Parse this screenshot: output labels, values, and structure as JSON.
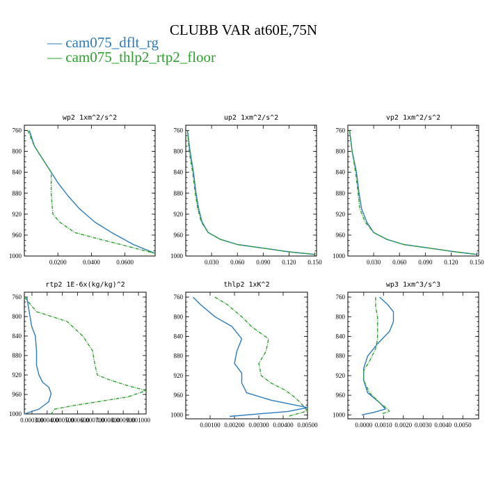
{
  "figure": {
    "title": "CLUBB VAR at60E,75N"
  },
  "legend": [
    {
      "label": "cam075_dflt_rg",
      "color": "#2b7bba"
    },
    {
      "label": "cam075_thlp2_rtp2_floor",
      "color": "#2ca02c"
    }
  ],
  "chart_data": [
    {
      "type": "line",
      "title": "wp2  1xm^2/s^2",
      "ylim": [
        1000,
        750
      ],
      "y_ticks": [
        760,
        800,
        840,
        880,
        920,
        960,
        1000
      ],
      "xlim": [
        0.0,
        0.078
      ],
      "x_ticks": [
        0.02,
        0.04,
        0.06
      ],
      "x_tick_labels": [
        "0.0200",
        "0.0400",
        "0.0600"
      ],
      "series": [
        {
          "name": "cam075_dflt_rg",
          "style": "solid",
          "x": [
            0.003,
            0.006,
            0.01,
            0.015,
            0.02,
            0.026,
            0.033,
            0.042,
            0.052,
            0.065,
            0.078
          ],
          "y": [
            760,
            790,
            810,
            835,
            860,
            885,
            910,
            935,
            955,
            978,
            995
          ]
        },
        {
          "name": "cam075_thlp2_rtp2_floor",
          "style": "dashed",
          "x": [
            0.002,
            0.006,
            0.011,
            0.016,
            0.016,
            0.016,
            0.017,
            0.021,
            0.03,
            0.045,
            0.06,
            0.078
          ],
          "y": [
            760,
            790,
            815,
            840,
            858,
            880,
            920,
            935,
            955,
            968,
            980,
            995
          ]
        }
      ]
    },
    {
      "type": "line",
      "title": "up2  1xm^2/s^2",
      "ylim": [
        1000,
        750
      ],
      "y_ticks": [
        760,
        800,
        840,
        880,
        920,
        960,
        1000
      ],
      "xlim": [
        0.0,
        0.152
      ],
      "x_ticks": [
        0.03,
        0.06,
        0.09,
        0.12,
        0.15
      ],
      "x_tick_labels": [
        "0.030",
        "0.060",
        "0.090",
        "0.120",
        "0.150"
      ],
      "series": [
        {
          "name": "cam075_dflt_rg",
          "style": "solid",
          "x": [
            0.002,
            0.005,
            0.009,
            0.012,
            0.015,
            0.019,
            0.026,
            0.04,
            0.06,
            0.09,
            0.12,
            0.15
          ],
          "y": [
            760,
            800,
            840,
            880,
            910,
            935,
            955,
            968,
            978,
            985,
            992,
            997
          ]
        },
        {
          "name": "cam075_thlp2_rtp2_floor",
          "style": "dashed",
          "x": [
            0.002,
            0.004,
            0.008,
            0.011,
            0.014,
            0.018,
            0.026,
            0.04,
            0.06,
            0.09,
            0.12,
            0.15
          ],
          "y": [
            760,
            800,
            840,
            880,
            910,
            935,
            955,
            968,
            978,
            985,
            992,
            997
          ]
        }
      ]
    },
    {
      "type": "line",
      "title": "vp2  1xm^2/s^2",
      "ylim": [
        1000,
        750
      ],
      "y_ticks": [
        760,
        800,
        840,
        880,
        920,
        960,
        1000
      ],
      "xlim": [
        0.0,
        0.152
      ],
      "x_ticks": [
        0.03,
        0.06,
        0.09,
        0.12,
        0.15
      ],
      "x_tick_labels": [
        "0.030",
        "0.060",
        "0.090",
        "0.120",
        "0.150"
      ],
      "series": [
        {
          "name": "cam075_dflt_rg",
          "style": "solid",
          "x": [
            0.002,
            0.005,
            0.01,
            0.013,
            0.016,
            0.022,
            0.03,
            0.045,
            0.065,
            0.095,
            0.125,
            0.15
          ],
          "y": [
            760,
            800,
            840,
            880,
            910,
            935,
            955,
            968,
            978,
            985,
            992,
            997
          ]
        },
        {
          "name": "cam075_thlp2_rtp2_floor",
          "style": "dashed",
          "x": [
            0.002,
            0.005,
            0.009,
            0.012,
            0.014,
            0.02,
            0.03,
            0.045,
            0.065,
            0.095,
            0.125,
            0.15
          ],
          "y": [
            760,
            800,
            840,
            880,
            910,
            935,
            955,
            968,
            978,
            985,
            992,
            997
          ]
        }
      ]
    },
    {
      "type": "line",
      "title": "rtp2  1E-6x(kg/kg)^2",
      "ylim": [
        1000,
        750
      ],
      "y_ticks": [
        760,
        800,
        840,
        880,
        920,
        960,
        1000
      ],
      "xlim": [
        0.0,
        1.0
      ],
      "x_tick_labels": [
        "0.000300",
        "0.000400",
        "0.000500",
        "0.000600",
        "0.000700",
        "0.000800",
        "0.000900",
        "0.001000"
      ],
      "series": [
        {
          "name": "cam075_dflt_rg",
          "style": "solid",
          "x": [
            0.02,
            0.04,
            0.06,
            0.09,
            0.1,
            0.1,
            0.12,
            0.15,
            0.2,
            0.22,
            0.2,
            0.12,
            0.0
          ],
          "y": [
            760,
            790,
            820,
            840,
            870,
            900,
            920,
            935,
            945,
            958,
            975,
            990,
            1000
          ]
        },
        {
          "name": "cam075_thlp2_rtp2_floor",
          "style": "dashed",
          "x": [
            0.0,
            0.1,
            0.35,
            0.48,
            0.56,
            0.58,
            0.6,
            0.7,
            0.85,
            1.0,
            0.85,
            0.6,
            0.4,
            0.25,
            0.22
          ],
          "y": [
            760,
            790,
            810,
            840,
            870,
            900,
            920,
            930,
            942,
            952,
            965,
            975,
            983,
            990,
            1000
          ]
        }
      ]
    },
    {
      "type": "line",
      "title": "thlp2  1xK^2",
      "ylim": [
        1008,
        750
      ],
      "y_ticks": [
        760,
        800,
        840,
        880,
        920,
        960,
        1000
      ],
      "xlim": [
        0.0,
        0.005
      ],
      "x_ticks": [
        0.001,
        0.002,
        0.003,
        0.004,
        0.005
      ],
      "x_tick_labels": [
        "0.00100",
        "0.00200",
        "0.00300",
        "0.00400",
        "0.00500"
      ],
      "series": [
        {
          "name": "cam075_dflt_rg",
          "style": "solid",
          "x": [
            0.0003,
            0.0006,
            0.0012,
            0.0019,
            0.0023,
            0.0021,
            0.002,
            0.0023,
            0.0023,
            0.0025,
            0.0035,
            0.005,
            0.0042,
            0.0018
          ],
          "y": [
            760,
            775,
            800,
            820,
            845,
            870,
            895,
            915,
            935,
            955,
            970,
            985,
            993,
            1003
          ]
        },
        {
          "name": "cam075_thlp2_rtp2_floor",
          "style": "dashed",
          "x": [
            0.0012,
            0.0017,
            0.0023,
            0.0027,
            0.0034,
            0.0033,
            0.003,
            0.0031,
            0.0035,
            0.0041,
            0.0045,
            0.0048,
            0.005,
            0.0042
          ],
          "y": [
            760,
            775,
            800,
            820,
            845,
            870,
            895,
            920,
            935,
            950,
            965,
            980,
            992,
            1003
          ]
        }
      ]
    },
    {
      "type": "line",
      "title": "wp3  1xm^3/s^3",
      "ylim": [
        1008,
        750
      ],
      "y_ticks": [
        760,
        800,
        840,
        880,
        920,
        960,
        1000
      ],
      "xlim": [
        -0.0008,
        0.0058
      ],
      "x_ticks": [
        0.0,
        0.001,
        0.002,
        0.003,
        0.004,
        0.005
      ],
      "x_tick_labels": [
        "0.0000",
        "0.0010",
        "0.0020",
        "0.0030",
        "0.0040",
        "0.0050"
      ],
      "series": [
        {
          "name": "cam075_dflt_rg",
          "style": "solid",
          "x": [
            0.0008,
            0.0012,
            0.0015,
            0.0015,
            0.0013,
            0.0007,
            0.0002,
            0.0,
            0.0,
            0.0002,
            0.0008,
            0.0011,
            0.0005,
            -0.0001
          ],
          "y": [
            760,
            775,
            790,
            810,
            830,
            855,
            880,
            905,
            930,
            955,
            975,
            988,
            995,
            1000
          ]
        },
        {
          "name": "cam075_thlp2_rtp2_floor",
          "style": "dashed",
          "x": [
            0.0006,
            0.0006,
            0.0007,
            0.0007,
            0.0007,
            0.0006,
            0.0003,
            0.0,
            0.0,
            0.0003,
            0.0008,
            0.0012,
            0.0013,
            0.0009
          ],
          "y": [
            760,
            780,
            800,
            820,
            845,
            865,
            890,
            910,
            930,
            955,
            975,
            988,
            993,
            998
          ]
        }
      ]
    }
  ]
}
